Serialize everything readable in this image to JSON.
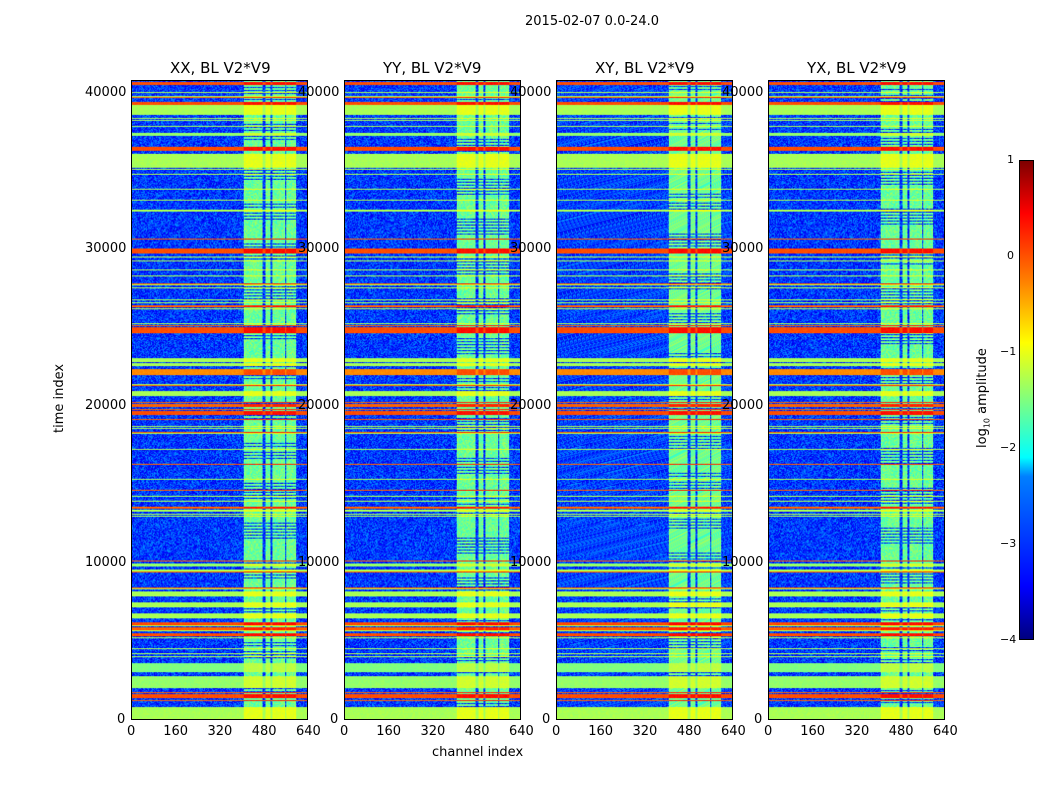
{
  "chart_data": {
    "type": "heatmap",
    "suptitle": "2015-02-07 0.0-24.0",
    "xlabel": "channel index",
    "ylabel": "time index",
    "xlim": [
      0,
      640
    ],
    "ylim": [
      0,
      40800
    ],
    "xticks": [
      "0",
      "160",
      "320",
      "480",
      "640"
    ],
    "yticks": [
      "0",
      "10000",
      "20000",
      "30000",
      "40000"
    ],
    "panels": [
      {
        "title": "XX, BL V2*V9",
        "seed": 11
      },
      {
        "title": "YY, BL V2*V9",
        "seed": 23
      },
      {
        "title": "XY, BL V2*V9",
        "seed": 37
      },
      {
        "title": "YX, BL V2*V9",
        "seed": 51
      }
    ],
    "colorbar": {
      "label": "log10 amplitude",
      "label_main": "log",
      "label_sub": "10",
      "label_rest": " amplitude",
      "range": [
        -4,
        1
      ],
      "ticks": [
        "1",
        "0",
        "−1",
        "−2",
        "−3",
        "−4"
      ],
      "colormap": "jet"
    },
    "background_level": -3.1,
    "rfi_channels": [
      [
        405,
        474
      ],
      [
        488,
        503
      ],
      [
        510,
        557
      ],
      [
        564,
        597
      ]
    ],
    "bands": [
      [
        0,
        800,
        -1.3
      ],
      [
        1400,
        1600,
        0
      ],
      [
        2000,
        2800,
        -1.4
      ],
      [
        3000,
        3600,
        -1.5
      ],
      [
        5300,
        5500,
        0
      ],
      [
        5700,
        5900,
        -0.1
      ],
      [
        6000,
        6200,
        0
      ],
      [
        6500,
        6800,
        -1.3
      ],
      [
        7200,
        7500,
        -1.3
      ],
      [
        7900,
        8200,
        -1.3
      ],
      [
        9800,
        10000,
        -1.4
      ],
      [
        19500,
        19700,
        0
      ],
      [
        20000,
        20200,
        -0.1
      ],
      [
        20700,
        21000,
        -1.3
      ],
      [
        22000,
        22400,
        -0.3
      ],
      [
        24700,
        25100,
        0
      ],
      [
        29800,
        30100,
        0
      ],
      [
        35300,
        36200,
        -1.3
      ],
      [
        36400,
        36600,
        0
      ],
      [
        37300,
        37500,
        -1.4
      ],
      [
        38700,
        39300,
        -1.3
      ],
      [
        39300,
        39500,
        0
      ],
      [
        40550,
        40800,
        0
      ]
    ]
  }
}
